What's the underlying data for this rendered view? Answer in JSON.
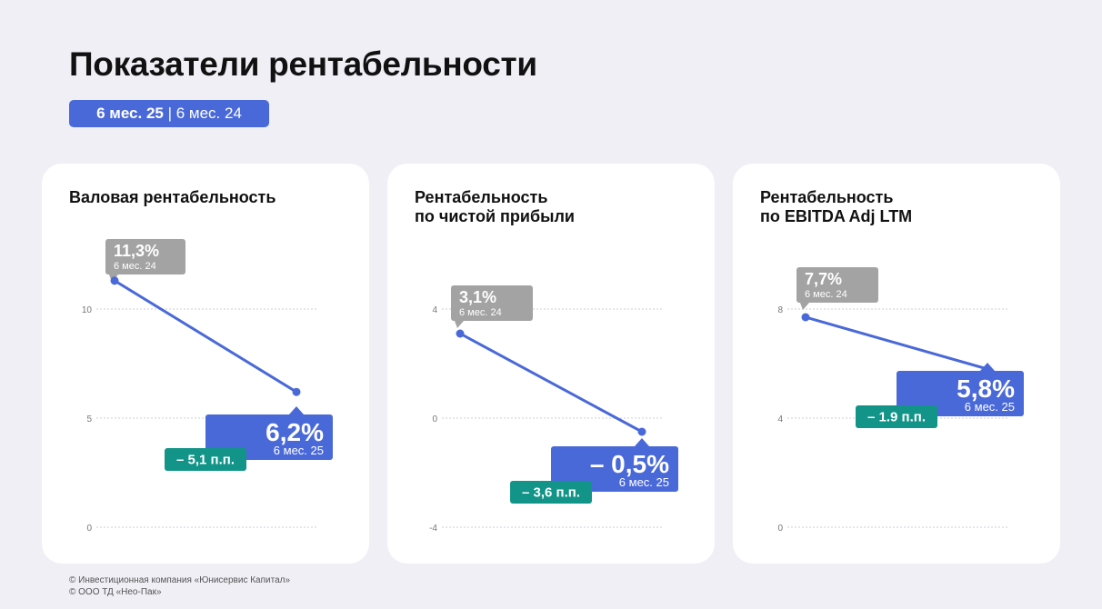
{
  "header": {
    "title": "Показатели рентабельности",
    "period_current": "6 мес. 25",
    "period_separator": " | ",
    "period_previous": "6 мес. 24"
  },
  "colors": {
    "accent": "#4a69d9",
    "previous": "#a3a3a3",
    "delta": "#139488",
    "grid": "#cfcfd6",
    "background": "#efeff5"
  },
  "chart_data": [
    {
      "type": "line",
      "title": "Валовая рентабельность",
      "x": [
        "6 мес. 24",
        "6 мес. 25"
      ],
      "series": [
        {
          "values": [
            11.3,
            6.2
          ]
        }
      ],
      "ylim": [
        0,
        10
      ],
      "yticks": [
        0,
        5,
        10
      ],
      "ytick_labels": [
        "0",
        "5",
        "10"
      ],
      "grid": true,
      "previous_label": {
        "value": "11,3%",
        "period": "6 мес. 24"
      },
      "current_label": {
        "value": "6,2%",
        "period": "6 мес. 25"
      },
      "delta_label": "– 5,1 п.п."
    },
    {
      "type": "line",
      "title": "Рентабельность\nпо чистой прибыли",
      "x": [
        "6 мес. 24",
        "6 мес. 25"
      ],
      "series": [
        {
          "values": [
            3.1,
            -0.5
          ]
        }
      ],
      "ylim": [
        -4,
        4
      ],
      "yticks": [
        -4,
        0,
        4
      ],
      "ytick_labels": [
        "-4",
        "0",
        "4"
      ],
      "grid": true,
      "previous_label": {
        "value": "3,1%",
        "period": "6 мес. 24"
      },
      "current_label": {
        "value": "– 0,5%",
        "period": "6 мес. 25"
      },
      "delta_label": "– 3,6 п.п."
    },
    {
      "type": "line",
      "title": "Рентабельность\nпо EBITDA Adj LTM",
      "x": [
        "6 мес. 24",
        "6 мес. 25"
      ],
      "series": [
        {
          "values": [
            7.7,
            5.8
          ]
        }
      ],
      "ylim": [
        0,
        8
      ],
      "yticks": [
        0,
        4,
        8
      ],
      "ytick_labels": [
        "0",
        "4",
        "8"
      ],
      "grid": true,
      "previous_label": {
        "value": "7,7%",
        "period": "6 мес. 24"
      },
      "current_label": {
        "value": "5,8%",
        "period": "6 мес. 25"
      },
      "delta_label": "– 1.9 п.п."
    }
  ],
  "footer": {
    "line1": "© Инвестиционная компания «Юнисервис Капитал»",
    "line2": "© ООО ТД «Нео-Пак»"
  }
}
